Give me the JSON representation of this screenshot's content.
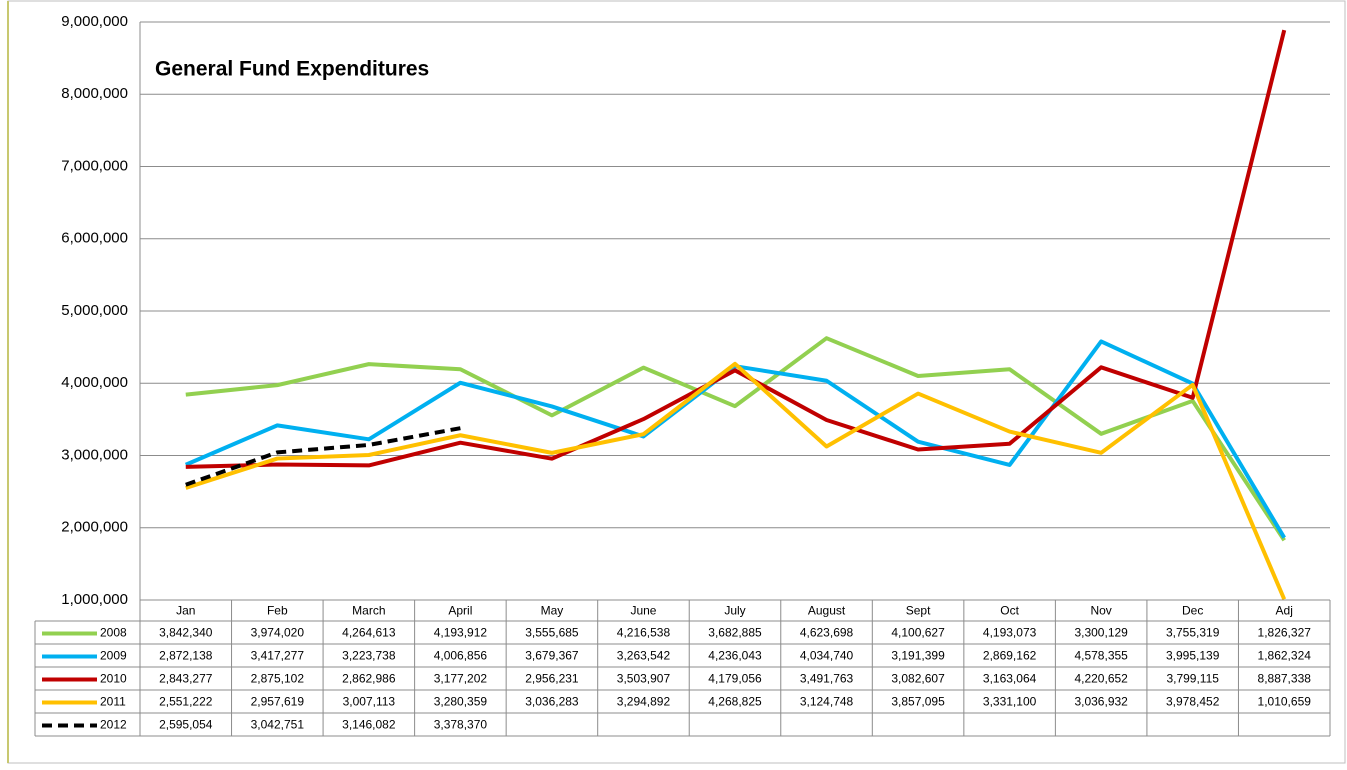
{
  "chart_data": {
    "type": "line",
    "title": "General Fund Expenditures",
    "categories": [
      "Jan",
      "Feb",
      "March",
      "April",
      "May",
      "June",
      "July",
      "August",
      "Sept",
      "Oct",
      "Nov",
      "Dec",
      "Adj"
    ],
    "ylim": [
      1000000,
      9000000
    ],
    "yticks": [
      {
        "value": 1000000,
        "label": "1,000,000"
      },
      {
        "value": 2000000,
        "label": "2,000,000"
      },
      {
        "value": 3000000,
        "label": "3,000,000"
      },
      {
        "value": 4000000,
        "label": "4,000,000"
      },
      {
        "value": 5000000,
        "label": "5,000,000"
      },
      {
        "value": 6000000,
        "label": "6,000,000"
      },
      {
        "value": 7000000,
        "label": "7,000,000"
      },
      {
        "value": 8000000,
        "label": "8,000,000"
      },
      {
        "value": 9000000,
        "label": "9,000,000"
      }
    ],
    "grid": true,
    "series": [
      {
        "name": "2008",
        "color": "#92d050",
        "line_style": "solid",
        "values": [
          3842340,
          3974020,
          4264613,
          4193912,
          3555685,
          4216538,
          3682885,
          4623698,
          4100627,
          4193073,
          3300129,
          3755319,
          1826327
        ],
        "value_labels": [
          "3,842,340",
          "3,974,020",
          "4,264,613",
          "4,193,912",
          "3,555,685",
          "4,216,538",
          "3,682,885",
          "4,623,698",
          "4,100,627",
          "4,193,073",
          "3,300,129",
          "3,755,319",
          "1,826,327"
        ]
      },
      {
        "name": "2009",
        "color": "#00b0f0",
        "line_style": "solid",
        "values": [
          2872138,
          3417277,
          3223738,
          4006856,
          3679367,
          3263542,
          4236043,
          4034740,
          3191399,
          2869162,
          4578355,
          3995139,
          1862324
        ],
        "value_labels": [
          "2,872,138",
          "3,417,277",
          "3,223,738",
          "4,006,856",
          "3,679,367",
          "3,263,542",
          "4,236,043",
          "4,034,740",
          "3,191,399",
          "2,869,162",
          "4,578,355",
          "3,995,139",
          "1,862,324"
        ]
      },
      {
        "name": "2010",
        "color": "#c00000",
        "line_style": "solid",
        "values": [
          2843277,
          2875102,
          2862986,
          3177202,
          2956231,
          3503907,
          4179056,
          3491763,
          3082607,
          3163064,
          4220652,
          3799115,
          8887338
        ],
        "value_labels": [
          "2,843,277",
          "2,875,102",
          "2,862,986",
          "3,177,202",
          "2,956,231",
          "3,503,907",
          "4,179,056",
          "3,491,763",
          "3,082,607",
          "3,163,064",
          "4,220,652",
          "3,799,115",
          "8,887,338"
        ]
      },
      {
        "name": "2011",
        "color": "#ffc000",
        "line_style": "solid",
        "values": [
          2551222,
          2957619,
          3007113,
          3280359,
          3036283,
          3294892,
          4268825,
          3124748,
          3857095,
          3331100,
          3036932,
          3978452,
          1010659
        ],
        "value_labels": [
          "2,551,222",
          "2,957,619",
          "3,007,113",
          "3,280,359",
          "3,036,283",
          "3,294,892",
          "4,268,825",
          "3,124,748",
          "3,857,095",
          "3,331,100",
          "3,036,932",
          "3,978,452",
          "1,010,659"
        ]
      },
      {
        "name": "2012",
        "color": "#000000",
        "line_style": "dashed",
        "values": [
          2595054,
          3042751,
          3146082,
          3378370,
          null,
          null,
          null,
          null,
          null,
          null,
          null,
          null,
          null
        ],
        "value_labels": [
          "2,595,054",
          "3,042,751",
          "3,146,082",
          "3,378,370",
          null,
          null,
          null,
          null,
          null,
          null,
          null,
          null,
          null
        ]
      }
    ]
  }
}
